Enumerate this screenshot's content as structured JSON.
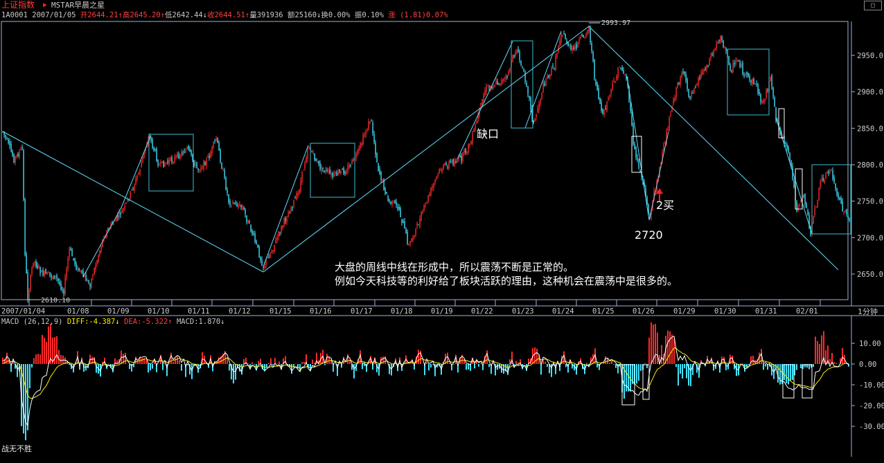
{
  "window": {
    "title": "上证指数",
    "indicator": "MSTAR早晨之星",
    "restore_button": "□"
  },
  "quote": {
    "code": "1A0001",
    "date": "2007/01/05",
    "open_label": "开",
    "open": "2644.21",
    "high_label": "高",
    "high": "2645.20",
    "low_label": "低",
    "low": "2642.44",
    "close_label": "收",
    "close": "2644.51",
    "volume_label": "量",
    "volume": "391936",
    "amount_label": "额",
    "amount": "25160",
    "turnover_label": "换",
    "turnover": "0.00%",
    "amplitude_label": "振",
    "amplitude": "0.10%",
    "change_label": "涨",
    "change": "(1.81)0.07%"
  },
  "price_axis": {
    "ticks": [
      "2950.0",
      "2900.0",
      "2850.0",
      "2800.0",
      "2750.0",
      "2700.0",
      "2650.0"
    ]
  },
  "date_axis": {
    "labels": [
      "2007/01/04",
      "01/08",
      "01/09",
      "01/10",
      "01/11",
      "01/12",
      "01/15",
      "01/16",
      "01/17",
      "01/18",
      "01/19",
      "01/22",
      "01/23",
      "01/24",
      "01/25",
      "01/26",
      "01/29",
      "01/30",
      "01/31",
      "02/01"
    ]
  },
  "period": "1分钟",
  "price_annotations": {
    "high_mark": "2993.97",
    "low_mark": "2610.10",
    "gap": "缺口",
    "buy": "2买",
    "low_2720": "2720"
  },
  "commentary": {
    "line1": "大盘的周线中线在形成中，所以震荡不断是正常的。",
    "line2": "例如今天科技等的利好给了板块活跃的理由，这种机会在震荡中是很多的。"
  },
  "macd": {
    "label": "MACD (26,12,9)",
    "diff_label": "DIFF:",
    "diff": "-4.387",
    "dea_label": "DEA:",
    "dea": "-5.322",
    "macd_label": "MACD:",
    "macd": "1.870",
    "ticks": [
      "10.00",
      "0.00",
      "-10.00",
      "-20.00",
      "-30.00"
    ]
  },
  "bottom_note": "战无不胜",
  "colors": {
    "up": "#ff2a2a",
    "down": "#3fe3ff",
    "border": "#9fb4d8",
    "trendline": "#5fe0ff",
    "diff_line": "#ffffff",
    "dea_line": "#ffee00"
  }
}
